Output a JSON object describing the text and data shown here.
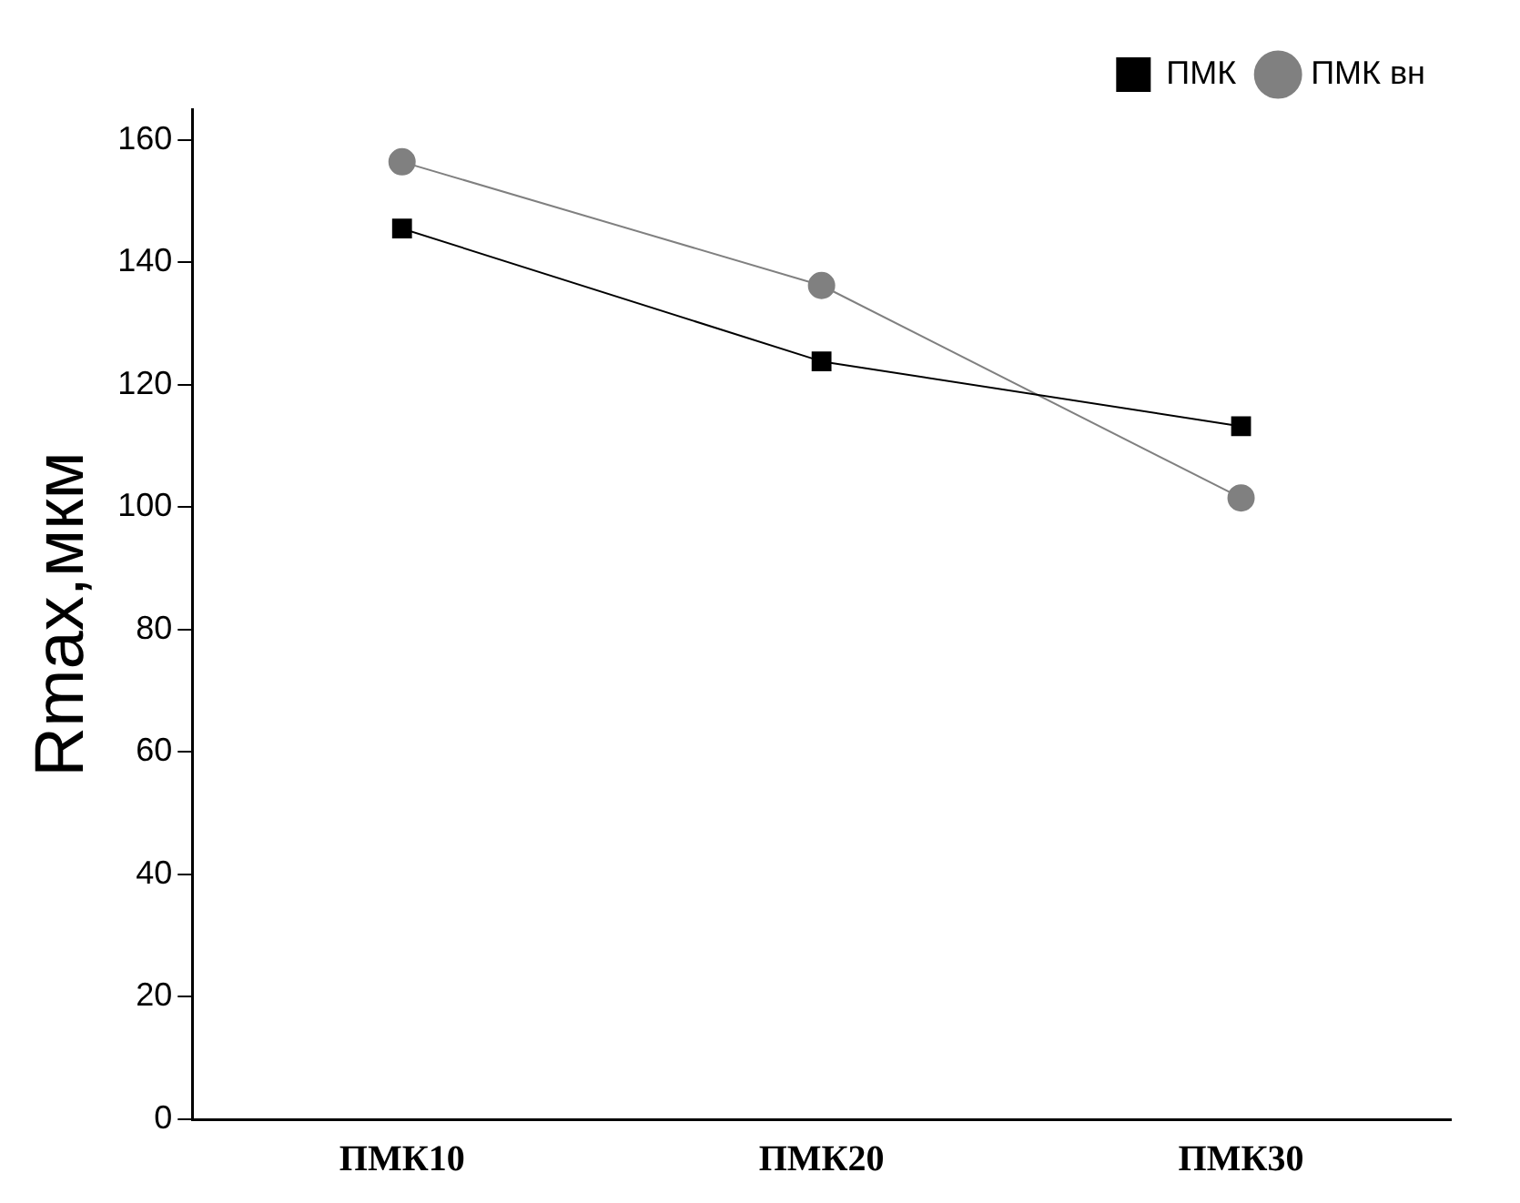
{
  "chart_data": {
    "type": "line",
    "ylabel": "Rmax,мкм",
    "categories": [
      "ПМК10",
      "ПМК20",
      "ПМК30"
    ],
    "series": [
      {
        "name": "ПМК",
        "color": "#000000",
        "marker": "square",
        "values": [
          145.5,
          123.8,
          113.2
        ]
      },
      {
        "name": "ПМК вн",
        "color": "#808080",
        "marker": "circle",
        "values": [
          156.4,
          136.2,
          101.5
        ]
      }
    ],
    "ylim": [
      0,
      165
    ],
    "yticks": [
      0,
      20,
      40,
      60,
      80,
      100,
      120,
      140,
      160
    ],
    "grid": false,
    "legend": "top right",
    "line_style": "solid"
  }
}
